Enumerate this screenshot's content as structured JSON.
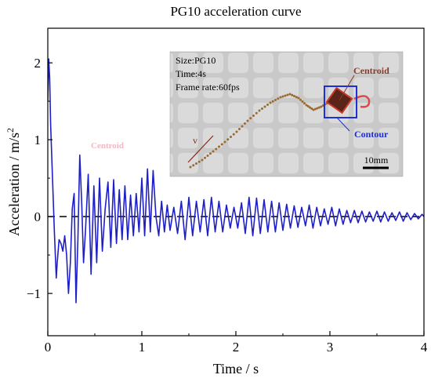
{
  "chart_data": {
    "type": "line",
    "title": "PG10 acceleration curve",
    "xlabel": "Time / s",
    "ylabel": "Acceleration / m/s",
    "ylabel_sup": "2",
    "xlim": [
      0,
      4
    ],
    "ylim": [
      -1.55,
      2.45
    ],
    "x_ticks": [
      "0",
      "1",
      "2",
      "3",
      "4"
    ],
    "y_ticks": [
      "2",
      "1",
      "0",
      "−1"
    ],
    "x_tick_values": [
      0,
      1,
      2,
      3,
      4
    ],
    "y_tick_values": [
      2,
      1,
      0,
      -1
    ],
    "grid": false,
    "reference_line": {
      "y": 0,
      "style": "dashed"
    },
    "series": [
      {
        "color": "#1f1fc8",
        "x": [
          0.0,
          0.01,
          0.02,
          0.03,
          0.05,
          0.07,
          0.09,
          0.1,
          0.12,
          0.14,
          0.16,
          0.18,
          0.2,
          0.22,
          0.24,
          0.26,
          0.28,
          0.3,
          0.32,
          0.34,
          0.36,
          0.38,
          0.4,
          0.43,
          0.46,
          0.49,
          0.52,
          0.55,
          0.58,
          0.61,
          0.64,
          0.67,
          0.7,
          0.73,
          0.76,
          0.79,
          0.82,
          0.85,
          0.88,
          0.91,
          0.94,
          0.97,
          1.0,
          1.03,
          1.06,
          1.09,
          1.12,
          1.15,
          1.18,
          1.21,
          1.24,
          1.27,
          1.3,
          1.34,
          1.38,
          1.42,
          1.46,
          1.5,
          1.54,
          1.58,
          1.62,
          1.66,
          1.7,
          1.74,
          1.78,
          1.82,
          1.86,
          1.9,
          1.94,
          1.98,
          2.02,
          2.06,
          2.1,
          2.14,
          2.18,
          2.22,
          2.26,
          2.3,
          2.34,
          2.38,
          2.42,
          2.46,
          2.5,
          2.54,
          2.58,
          2.62,
          2.66,
          2.7,
          2.74,
          2.78,
          2.82,
          2.86,
          2.9,
          2.94,
          2.98,
          3.02,
          3.06,
          3.1,
          3.14,
          3.18,
          3.22,
          3.26,
          3.3,
          3.34,
          3.38,
          3.42,
          3.46,
          3.5,
          3.54,
          3.58,
          3.62,
          3.66,
          3.7,
          3.74,
          3.78,
          3.82,
          3.86,
          3.9,
          3.94,
          3.98,
          4.0
        ],
        "y": [
          1.5,
          2.05,
          1.8,
          1.2,
          0.5,
          -0.2,
          -0.8,
          -0.6,
          -0.3,
          -0.35,
          -0.45,
          -0.25,
          -0.5,
          -1.0,
          -0.6,
          0.1,
          0.3,
          -1.12,
          -0.3,
          0.8,
          0.2,
          -0.6,
          -0.2,
          0.55,
          -0.75,
          0.4,
          -0.6,
          0.5,
          -0.45,
          0.1,
          0.45,
          -0.4,
          0.48,
          -0.35,
          0.35,
          -0.3,
          0.4,
          -0.3,
          0.28,
          -0.25,
          0.3,
          -0.2,
          0.5,
          -0.25,
          0.62,
          -0.2,
          0.6,
          0.0,
          -0.25,
          0.2,
          -0.2,
          0.15,
          -0.18,
          0.12,
          -0.22,
          0.2,
          -0.3,
          0.25,
          -0.25,
          0.2,
          -0.2,
          0.22,
          -0.25,
          0.25,
          -0.2,
          0.2,
          -0.2,
          0.15,
          -0.15,
          0.12,
          -0.15,
          0.18,
          -0.22,
          0.25,
          -0.25,
          0.24,
          -0.22,
          0.22,
          -0.2,
          0.2,
          -0.2,
          0.18,
          -0.18,
          0.16,
          -0.15,
          0.14,
          -0.14,
          0.12,
          -0.12,
          0.15,
          -0.15,
          0.12,
          -0.12,
          0.1,
          -0.1,
          0.12,
          -0.12,
          0.1,
          -0.1,
          0.08,
          -0.08,
          0.08,
          -0.08,
          0.07,
          -0.07,
          0.06,
          -0.06,
          0.07,
          -0.07,
          0.06,
          -0.06,
          0.05,
          -0.05,
          0.06,
          -0.06,
          0.05,
          -0.04,
          0.04,
          -0.03,
          0.03,
          0.0
        ]
      }
    ],
    "inset": {
      "lines": [
        "Size:PG10",
        "Time:4s",
        "Frame rate:60fps"
      ],
      "centroid_label": "Centroid",
      "contour_label": "Contour",
      "scale_label": "10mm",
      "velocity_label": "v",
      "ghost_label": "Centroid"
    }
  }
}
